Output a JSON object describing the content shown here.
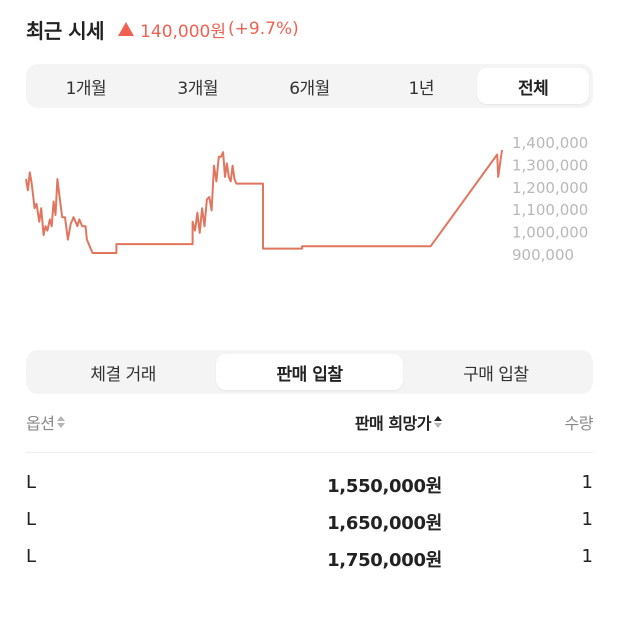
{
  "header": {
    "title": "최근 시세",
    "change_amount": "140,000원",
    "change_pct": "(+9.7%)",
    "change_color": "#ef6253"
  },
  "period_tabs": [
    {
      "label": "1개월",
      "active": false
    },
    {
      "label": "3개월",
      "active": false
    },
    {
      "label": "6개월",
      "active": false
    },
    {
      "label": "1년",
      "active": false
    },
    {
      "label": "전체",
      "active": true
    }
  ],
  "chart_data": {
    "type": "line",
    "series": [
      {
        "color": "#e1765f",
        "points": [
          [
            0,
            1270000
          ],
          [
            0.004,
            1220000
          ],
          [
            0.008,
            1300000
          ],
          [
            0.012,
            1250000
          ],
          [
            0.018,
            1140000
          ],
          [
            0.022,
            1160000
          ],
          [
            0.028,
            1080000
          ],
          [
            0.032,
            1140000
          ],
          [
            0.037,
            1020000
          ],
          [
            0.041,
            1060000
          ],
          [
            0.045,
            1040000
          ],
          [
            0.05,
            1090000
          ],
          [
            0.054,
            1060000
          ],
          [
            0.058,
            1170000
          ],
          [
            0.062,
            1110000
          ],
          [
            0.066,
            1270000
          ],
          [
            0.07,
            1200000
          ],
          [
            0.076,
            1100000
          ],
          [
            0.082,
            1100000
          ],
          [
            0.088,
            1000000
          ],
          [
            0.094,
            1070000
          ],
          [
            0.1,
            1100000
          ],
          [
            0.108,
            1060000
          ],
          [
            0.112,
            1090000
          ],
          [
            0.118,
            1060000
          ],
          [
            0.125,
            1060000
          ],
          [
            0.128,
            1000000
          ],
          [
            0.136,
            960000
          ],
          [
            0.14,
            940000
          ],
          [
            0.19,
            940000
          ],
          [
            0.19,
            980000
          ],
          [
            0.35,
            980000
          ],
          [
            0.35,
            1080000
          ],
          [
            0.355,
            1040000
          ],
          [
            0.36,
            1120000
          ],
          [
            0.365,
            1030000
          ],
          [
            0.37,
            1140000
          ],
          [
            0.375,
            1060000
          ],
          [
            0.38,
            1180000
          ],
          [
            0.385,
            1190000
          ],
          [
            0.39,
            1130000
          ],
          [
            0.395,
            1330000
          ],
          [
            0.4,
            1260000
          ],
          [
            0.405,
            1370000
          ],
          [
            0.41,
            1370000
          ],
          [
            0.414,
            1390000
          ],
          [
            0.418,
            1280000
          ],
          [
            0.422,
            1340000
          ],
          [
            0.426,
            1280000
          ],
          [
            0.43,
            1260000
          ],
          [
            0.434,
            1330000
          ],
          [
            0.438,
            1270000
          ],
          [
            0.442,
            1250000
          ],
          [
            0.446,
            1250000
          ],
          [
            0.498,
            1250000
          ],
          [
            0.498,
            960000
          ],
          [
            0.58,
            960000
          ],
          [
            0.58,
            970000
          ],
          [
            0.85,
            970000
          ],
          [
            0.99,
            1380000
          ],
          [
            0.992,
            1280000
          ],
          [
            1.0,
            1400000
          ]
        ]
      }
    ],
    "ylim": [
      900000,
      1400000
    ],
    "yticks": [
      "1,400,000",
      "1,300,000",
      "1,200,000",
      "1,100,000",
      "1,000,000",
      "900,000"
    ],
    "grid": false,
    "legend": "none"
  },
  "order_tabs": [
    {
      "label": "체결 거래",
      "active": false
    },
    {
      "label": "판매 입찰",
      "active": true
    },
    {
      "label": "구매 입찰",
      "active": false
    }
  ],
  "table": {
    "headers": {
      "option": "옵션",
      "price": "판매 희망가",
      "qty": "수량"
    },
    "rows": [
      {
        "option": "L",
        "price": "1,550,000원",
        "qty": "1"
      },
      {
        "option": "L",
        "price": "1,650,000원",
        "qty": "1"
      },
      {
        "option": "L",
        "price": "1,750,000원",
        "qty": "1"
      }
    ]
  }
}
